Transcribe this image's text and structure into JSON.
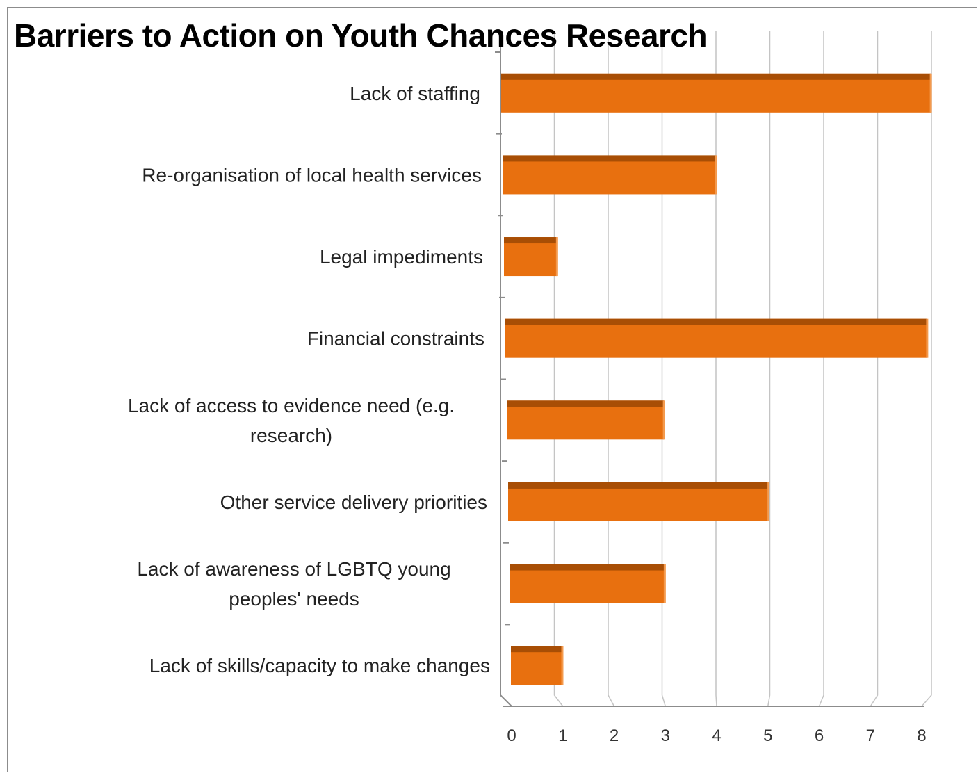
{
  "chart_data": {
    "type": "bar",
    "orientation": "horizontal",
    "title": "Barriers to Action on Youth Chances Research",
    "xlabel": "",
    "ylabel": "",
    "categories": [
      "Lack of staffing",
      "Re-organisation of local health services",
      "Legal impediments",
      "Financial constraints",
      "Lack of access to evidence need (e.g. research)",
      "Other service delivery priorities",
      "Lack of awareness of LGBTQ young peoples' needs",
      "Lack of skills/capacity to make changes"
    ],
    "values": [
      8,
      4,
      1,
      8,
      3,
      5,
      3,
      1
    ],
    "xlim": [
      0,
      8
    ],
    "xticks": [
      "0",
      "1",
      "2",
      "3",
      "4",
      "5",
      "6",
      "7",
      "8"
    ],
    "grid": true,
    "legend": "none",
    "colors": {
      "bar": "#e8700f",
      "bar_top": "#a84e05",
      "grid": "#c4c4c4",
      "axis": "#8c8c8c"
    }
  }
}
